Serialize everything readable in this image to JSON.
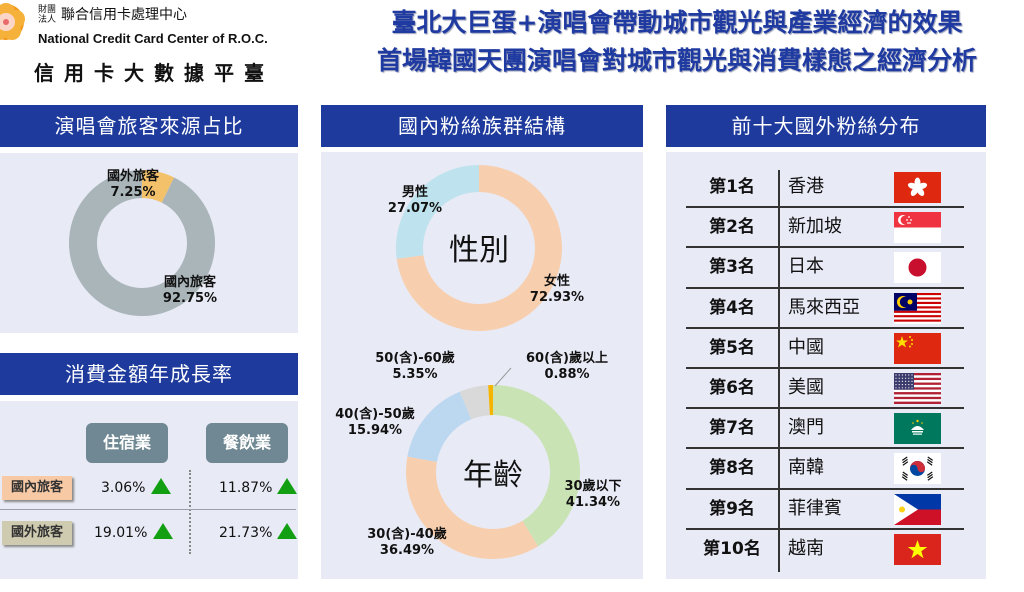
{
  "header": {
    "org_prefix": "財團法人",
    "org_name_zh": "聯合信用卡處理中心",
    "org_name_en": "National Credit Card Center of R.O.C.",
    "platform_name": "信用卡大數據平臺",
    "title_line1": "臺北大巨蛋+演唱會帶動城市觀光與產業經濟的效果",
    "title_line2": "首場韓國天團演唱會對城市觀光與消費樣態之經濟分析"
  },
  "colors": {
    "brand_blue": "#1d3a9c",
    "title_blue": "#1f3aa0",
    "panel_bg": "#e8eaf5",
    "up_green": "#12a012"
  },
  "panels": {
    "visitor_source": {
      "title": "演唱會旅客來源占比"
    },
    "growth": {
      "title": "消費金額年成長率",
      "columns": [
        "住宿業",
        "餐飲業"
      ],
      "rows": [
        {
          "label": "國內旅客",
          "chip_color": "#f7c9a5",
          "values": [
            "3.06%",
            "11.87%"
          ],
          "trend": [
            "up",
            "up"
          ]
        },
        {
          "label": "國外旅客",
          "chip_color": "#cfcbb0",
          "values": [
            "19.01%",
            "21.73%"
          ],
          "trend": [
            "up",
            "up"
          ]
        }
      ]
    },
    "domestic_fans": {
      "title": "國內粉絲族群結構"
    },
    "top10": {
      "title": "前十大國外粉絲分布",
      "rows": [
        {
          "rank": "第1名",
          "country": "香港",
          "flag": "hong-kong-flag"
        },
        {
          "rank": "第2名",
          "country": "新加坡",
          "flag": "singapore-flag"
        },
        {
          "rank": "第3名",
          "country": "日本",
          "flag": "japan-flag"
        },
        {
          "rank": "第4名",
          "country": "馬來西亞",
          "flag": "malaysia-flag"
        },
        {
          "rank": "第5名",
          "country": "中國",
          "flag": "china-flag"
        },
        {
          "rank": "第6名",
          "country": "美國",
          "flag": "usa-flag"
        },
        {
          "rank": "第7名",
          "country": "澳門",
          "flag": "macau-flag"
        },
        {
          "rank": "第8名",
          "country": "南韓",
          "flag": "south-korea-flag"
        },
        {
          "rank": "第9名",
          "country": "菲律賓",
          "flag": "philippines-flag"
        },
        {
          "rank": "第10名",
          "country": "越南",
          "flag": "vietnam-flag"
        }
      ]
    }
  },
  "chart_data": [
    {
      "type": "pie",
      "donut": true,
      "title": "演唱會旅客來源占比",
      "center_label": "",
      "slices": [
        {
          "label": "國外旅客",
          "value": 7.25,
          "display": "7.25%",
          "color": "#f3c16a"
        },
        {
          "label": "國內旅客",
          "value": 92.75,
          "display": "92.75%",
          "color": "#a9b5b9"
        }
      ]
    },
    {
      "type": "pie",
      "donut": true,
      "title": "國內粉絲族群結構 - 性別",
      "center_label": "性別",
      "slices": [
        {
          "label": "女性",
          "value": 72.93,
          "display": "72.93%",
          "color": "#f8cfae"
        },
        {
          "label": "男性",
          "value": 27.07,
          "display": "27.07%",
          "color": "#bfe3ee"
        }
      ]
    },
    {
      "type": "pie",
      "donut": true,
      "title": "國內粉絲族群結構 - 年齡",
      "center_label": "年齡",
      "slices": [
        {
          "label": "30歲以下",
          "value": 41.34,
          "display": "41.34%",
          "color": "#c9e3b4"
        },
        {
          "label": "30(含)-40歲",
          "value": 36.49,
          "display": "36.49%",
          "color": "#f8cfae"
        },
        {
          "label": "40(含)-50歲",
          "value": 15.94,
          "display": "15.94%",
          "color": "#bcd8f0"
        },
        {
          "label": "50(含)-60歲",
          "value": 5.35,
          "display": "5.35%",
          "color": "#d9d9d9"
        },
        {
          "label": "60(含)歲以上",
          "value": 0.88,
          "display": "0.88%",
          "color": "#f5b400"
        }
      ]
    }
  ]
}
